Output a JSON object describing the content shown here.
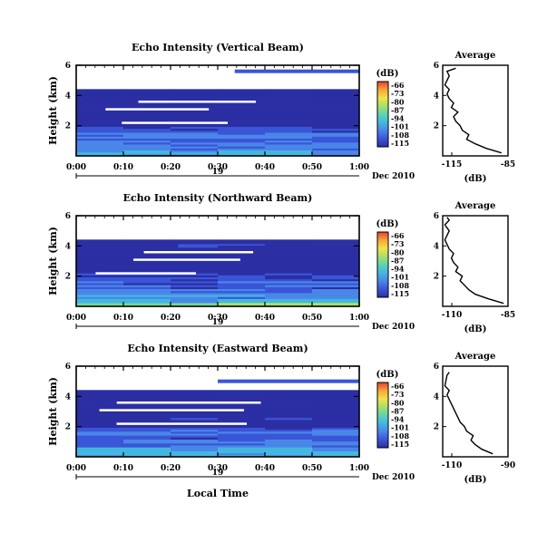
{
  "figure": {
    "xlabel_bottom": "Local Time",
    "colorbar_unit": "(dB)",
    "colorbar_ticks": [
      "-66",
      "-73",
      "-80",
      "-87",
      "-94",
      "-101",
      "-108",
      "-115"
    ],
    "day_label": "19",
    "month_label": "Dec 2010",
    "palette": [
      "#2b2fa3",
      "#3a55d8",
      "#4a86e8",
      "#43b7e0",
      "#5fd3b0",
      "#a9e06a",
      "#f1e24a",
      "#f5a63a",
      "#e8402a"
    ]
  },
  "chart_data": [
    {
      "type": "heatmap",
      "title": "Echo Intensity (Vertical Beam)",
      "ylabel": "Height (km)",
      "x": [
        "0:00",
        "0:10",
        "0:20",
        "0:30",
        "0:40",
        "0:50",
        "1:00"
      ],
      "xlim_minutes": [
        0,
        60
      ],
      "y_ticks": [
        2,
        4,
        6
      ],
      "ylim_km": [
        0,
        6
      ],
      "z_unit": "dB",
      "zlim": [
        -115,
        -66
      ],
      "profile": {
        "title": "Average",
        "xlabel": "(dB)",
        "x_ticks": [
          "-115",
          "-85"
        ],
        "xlim": [
          -115,
          -85
        ],
        "y_ticks": [
          2,
          4,
          6
        ],
        "height_km": [
          0.2,
          0.5,
          0.8,
          1.1,
          1.4,
          1.7,
          2.0,
          2.3,
          2.6,
          2.9,
          3.2,
          3.5,
          3.8,
          4.1,
          4.4,
          4.7,
          5.0,
          5.3,
          5.6,
          5.8
        ],
        "db": [
          -88,
          -95,
          -100,
          -104,
          -103,
          -106,
          -107,
          -109,
          -110,
          -108,
          -111,
          -110,
          -112,
          -113,
          -112,
          -114,
          -113,
          -112,
          -113,
          -109
        ]
      }
    },
    {
      "type": "heatmap",
      "title": "Echo Intensity (Northward Beam)",
      "ylabel": "Height (km)",
      "x": [
        "0:00",
        "0:10",
        "0:20",
        "0:30",
        "0:40",
        "0:50",
        "1:00"
      ],
      "xlim_minutes": [
        0,
        60
      ],
      "y_ticks": [
        2,
        4,
        6
      ],
      "ylim_km": [
        0,
        6
      ],
      "z_unit": "dB",
      "zlim": [
        -115,
        -66
      ],
      "profile": {
        "title": "Average",
        "xlabel": "(dB)",
        "x_ticks": [
          "-110",
          "-85"
        ],
        "xlim": [
          -115,
          -85
        ],
        "y_ticks": [
          2,
          4,
          6
        ],
        "height_km": [
          0.2,
          0.5,
          0.8,
          1.1,
          1.4,
          1.7,
          2.0,
          2.3,
          2.6,
          2.9,
          3.2,
          3.5,
          3.8,
          4.1,
          4.4,
          4.7,
          5.0,
          5.4,
          5.7,
          5.9
        ],
        "db": [
          -87,
          -94,
          -100,
          -103,
          -105,
          -107,
          -106,
          -109,
          -108,
          -110,
          -111,
          -110,
          -112,
          -113,
          -114,
          -113,
          -112,
          -114,
          -112,
          -113
        ]
      }
    },
    {
      "type": "heatmap",
      "title": "Echo Intensity (Eastward Beam)",
      "ylabel": "Height (km)",
      "x": [
        "0:00",
        "0:10",
        "0:20",
        "0:30",
        "0:40",
        "0:50",
        "1:00"
      ],
      "xlim_minutes": [
        0,
        60
      ],
      "y_ticks": [
        2,
        4,
        6
      ],
      "ylim_km": [
        0,
        6
      ],
      "z_unit": "dB",
      "zlim": [
        -115,
        -66
      ],
      "profile": {
        "title": "Average",
        "xlabel": "(dB)",
        "x_ticks": [
          "-110",
          "-90"
        ],
        "xlim": [
          -115,
          -85
        ],
        "y_ticks": [
          2,
          4,
          6
        ],
        "height_km": [
          0.2,
          0.5,
          0.8,
          1.1,
          1.4,
          1.7,
          2.0,
          2.3,
          2.6,
          2.9,
          3.2,
          3.5,
          3.8,
          4.1,
          4.4,
          4.7,
          5.4,
          5.6
        ],
        "db": [
          -92,
          -97,
          -100,
          -102,
          -101,
          -104,
          -105,
          -107,
          -108,
          -109,
          -110,
          -111,
          -112,
          -113,
          -112,
          -114,
          -113,
          -112
        ]
      }
    }
  ]
}
